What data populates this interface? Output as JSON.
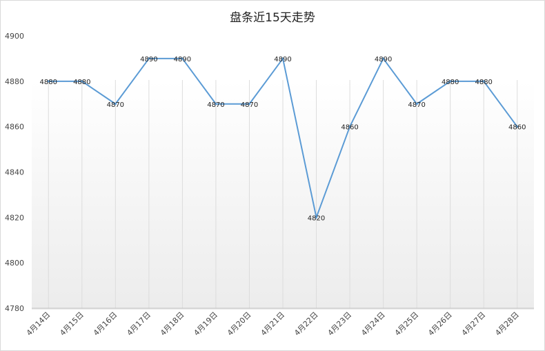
{
  "chart_data": {
    "type": "line",
    "title": "盘条近15天走势",
    "categories": [
      "4月14日",
      "4月15日",
      "4月16日",
      "4月17日",
      "4月18日",
      "4月19日",
      "4月20日",
      "4月21日",
      "4月22日",
      "4月23日",
      "4月24日",
      "4月25日",
      "4月26日",
      "4月27日",
      "4月28日"
    ],
    "series": [
      {
        "values": [
          4880,
          4880,
          4870,
          4890,
          4890,
          4870,
          4870,
          4890,
          4820,
          4860,
          4890,
          4870,
          4880,
          4880,
          4860
        ]
      }
    ],
    "ylim": [
      4780,
      4900
    ],
    "yticks": [
      4780,
      4800,
      4820,
      4840,
      4860,
      4880,
      4900
    ],
    "grid": "vertical",
    "legend": "none",
    "line_color": "#5b9bd5",
    "xlabel": "",
    "ylabel": ""
  }
}
